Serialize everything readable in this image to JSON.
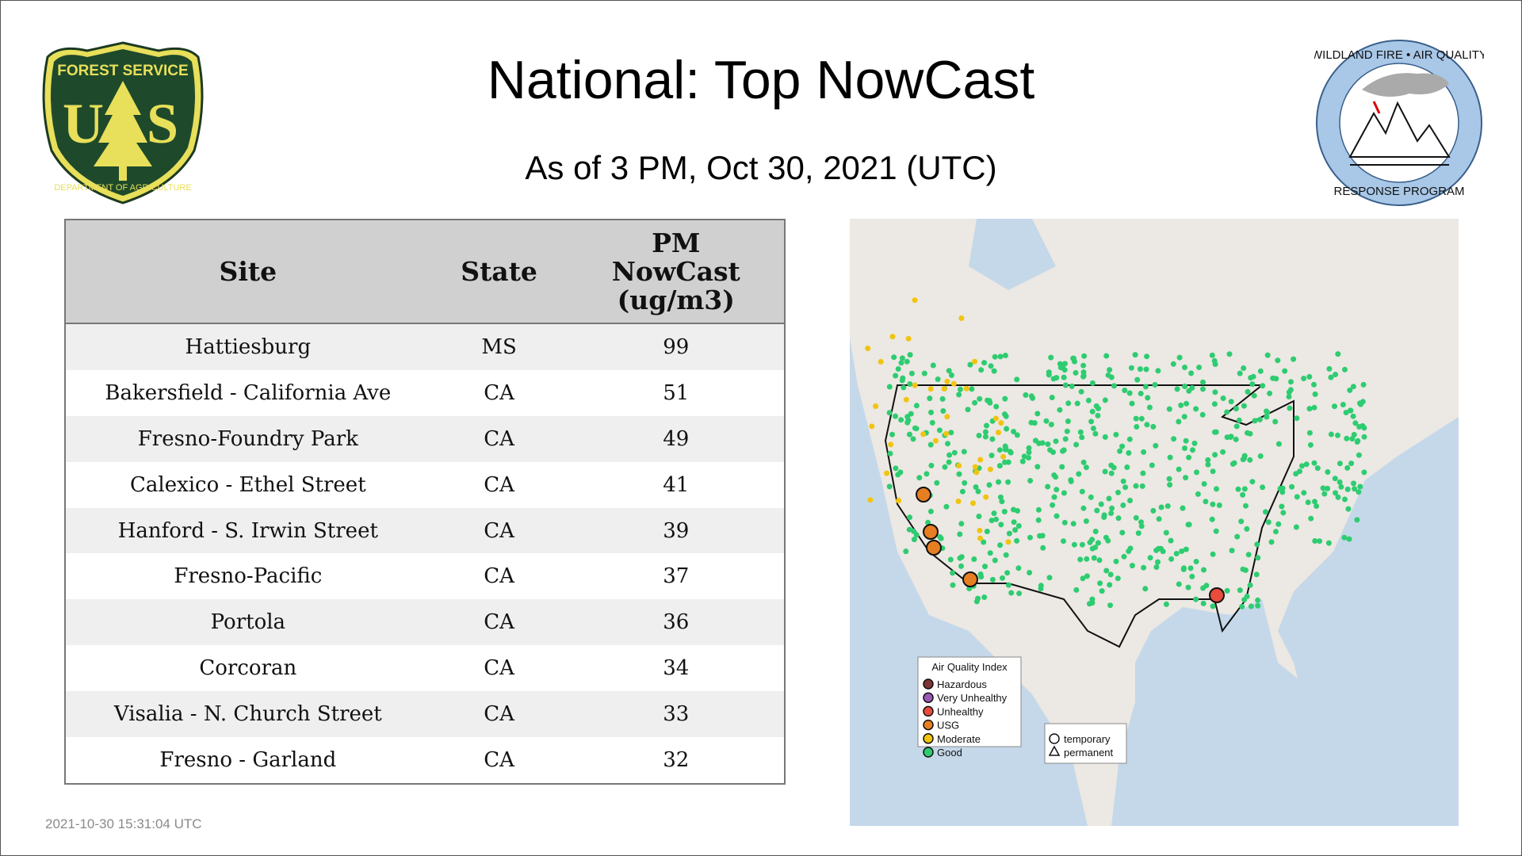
{
  "header": {
    "title": "National: Top NowCast",
    "subtitle": "As of  3 PM, Oct 30, 2021 (UTC)"
  },
  "logos": {
    "left": "FOREST SERVICE U S DEPARTMENT OF AGRICULTURE",
    "right": "WILDLAND FIRE • AIR QUALITY RESPONSE PROGRAM"
  },
  "table": {
    "columns": [
      "Site",
      "State",
      "PM NowCast (ug/m3)"
    ],
    "rows": [
      {
        "site": "Hattiesburg",
        "state": "MS",
        "value": "99"
      },
      {
        "site": "Bakersfield - California Ave",
        "state": "CA",
        "value": "51"
      },
      {
        "site": "Fresno-Foundry Park",
        "state": "CA",
        "value": "49"
      },
      {
        "site": "Calexico - Ethel Street",
        "state": "CA",
        "value": "41"
      },
      {
        "site": "Hanford - S. Irwin Street",
        "state": "CA",
        "value": "39"
      },
      {
        "site": "Fresno-Pacific",
        "state": "CA",
        "value": "37"
      },
      {
        "site": "Portola",
        "state": "CA",
        "value": "36"
      },
      {
        "site": "Corcoran",
        "state": "CA",
        "value": "34"
      },
      {
        "site": "Visalia - N. Church Street",
        "state": "CA",
        "value": "33"
      },
      {
        "site": "Fresno - Garland",
        "state": "CA",
        "value": "32"
      }
    ]
  },
  "map": {
    "legend_title": "Air Quality Index",
    "legend": [
      {
        "label": "Hazardous",
        "color": "#7e3434"
      },
      {
        "label": "Very Unhealthy",
        "color": "#9b59b6"
      },
      {
        "label": "Unhealthy",
        "color": "#e74c3c"
      },
      {
        "label": "USG",
        "color": "#e67e22"
      },
      {
        "label": "Moderate",
        "color": "#f1c40f"
      },
      {
        "label": "Good",
        "color": "#2ecc71"
      }
    ],
    "shapes": [
      {
        "label": "temporary",
        "icon": "circle"
      },
      {
        "label": "permanent",
        "icon": "triangle"
      }
    ]
  },
  "footer": {
    "timestamp": "2021-10-30 15:31:04 UTC"
  }
}
